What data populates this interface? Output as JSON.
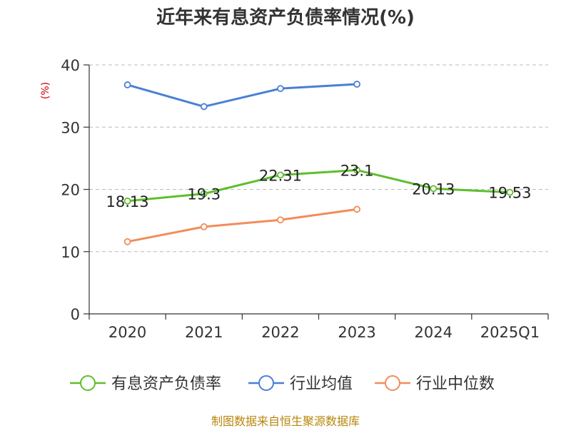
{
  "chart_data": {
    "type": "line",
    "title": "近年来有息资产负债率情况(%)",
    "unit_label": "(%)",
    "categories": [
      "2020",
      "2021",
      "2022",
      "2023",
      "2024",
      "2025Q1"
    ],
    "ylim": [
      0,
      40
    ],
    "yticks": [
      0,
      10,
      20,
      30,
      40
    ],
    "grid": true,
    "legend_position": "bottom",
    "series": [
      {
        "name": "有息资产负债率",
        "color": "#5dbf2c",
        "values": [
          18.13,
          19.3,
          22.31,
          23.1,
          20.13,
          19.53
        ],
        "labels": [
          "18.13",
          "19.3",
          "22.31",
          "23.1",
          "20.13",
          "19.53"
        ]
      },
      {
        "name": "行业均值",
        "color": "#4a7fd6",
        "values": [
          36.8,
          33.3,
          36.2,
          36.9,
          null,
          null
        ]
      },
      {
        "name": "行业中位数",
        "color": "#f28c5a",
        "values": [
          11.6,
          14.0,
          15.1,
          16.8,
          null,
          null
        ]
      }
    ]
  },
  "footer": "制图数据来自恒生聚源数据库"
}
